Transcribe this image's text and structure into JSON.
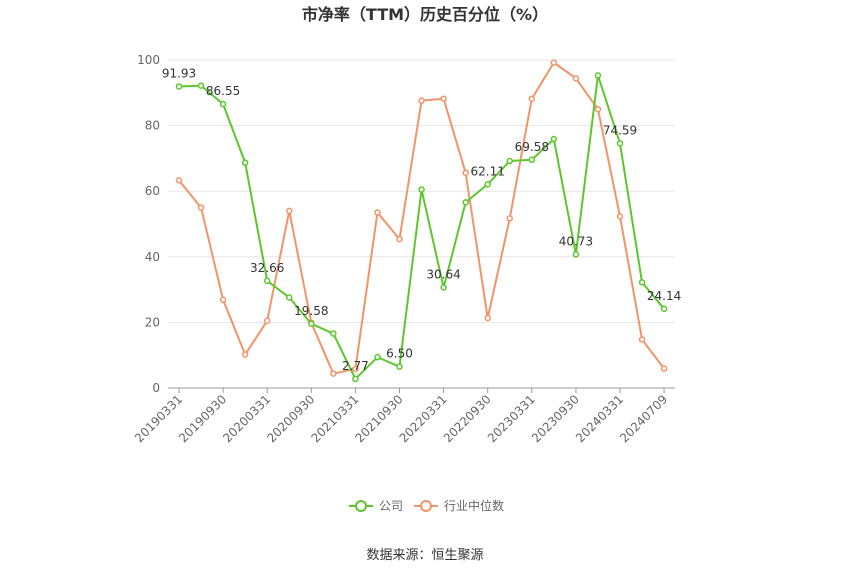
{
  "chart_data": {
    "type": "line",
    "title": "市净率（TTM）历史百分位（%）",
    "ylim": [
      0,
      100
    ],
    "y_ticks": [
      0,
      20,
      40,
      60,
      80,
      100
    ],
    "x_tick_labels": [
      "20190331",
      "20190930",
      "20200331",
      "20200930",
      "20210331",
      "20210930",
      "20220331",
      "20220930",
      "20230331",
      "20230930",
      "20240331",
      "20240709"
    ],
    "grid": "horizontal",
    "legend_position": "bottom-center",
    "series": [
      {
        "name": "公司",
        "color": "#5cc72c",
        "values": [
          91.93,
          92.2,
          86.55,
          68.7,
          32.66,
          27.6,
          19.58,
          16.6,
          2.77,
          9.4,
          6.5,
          60.5,
          30.64,
          56.6,
          62.11,
          69.2,
          69.58,
          75.9,
          40.73,
          95.3,
          74.59,
          32.2,
          24.14
        ],
        "labels": {
          "0": "91.93",
          "2": "86.55",
          "4": "32.66",
          "6": "19.58",
          "8": "2.77",
          "10": "6.50",
          "12": "30.64",
          "14": "62.11",
          "16": "69.58",
          "18": "40.73",
          "20": "74.59",
          "22": "24.14"
        }
      },
      {
        "name": "行业中位数",
        "color": "#f2946a",
        "values": [
          63.3,
          55.0,
          26.9,
          10.2,
          20.5,
          54.0,
          19.9,
          4.4,
          5.8,
          53.5,
          45.4,
          87.6,
          88.2,
          65.6,
          21.3,
          51.7,
          88.2,
          99.2,
          94.4,
          85.0,
          52.3,
          14.8,
          5.9
        ],
        "labels": {}
      }
    ]
  },
  "source_text": "数据来源：恒生聚源"
}
